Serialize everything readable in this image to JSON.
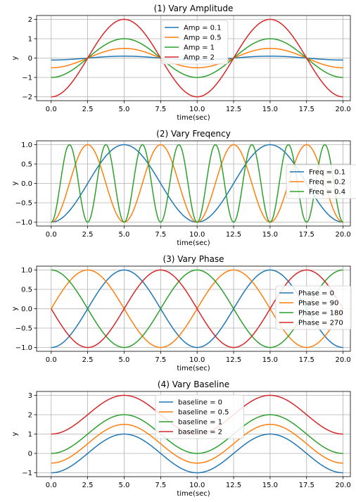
{
  "chart_data": [
    {
      "type": "line",
      "title": "(1) Vary Amplitude",
      "xlabel": "time(sec)",
      "ylabel": "y",
      "xlim": [
        -1,
        20.5
      ],
      "ylim": [
        -2.2,
        2.2
      ],
      "xticks": [
        0.0,
        2.5,
        5.0,
        7.5,
        10.0,
        12.5,
        15.0,
        17.5,
        20.0
      ],
      "xtick_labels": [
        "0.0",
        "2.5",
        "5.0",
        "7.5",
        "10.0",
        "12.5",
        "15.0",
        "17.5",
        "20.0"
      ],
      "yticks": [
        -2,
        -1,
        0,
        1,
        2
      ],
      "ytick_labels": [
        "−2",
        "−1",
        "0",
        "1",
        "2"
      ],
      "grid": true,
      "legend_position": "top-center",
      "function": "y = baseline - amplitude * cos(2π · frequency · t + phase)",
      "t_range": [
        0,
        20
      ],
      "series": [
        {
          "name": "Amp = 0.1",
          "color": "#1f77b4",
          "amplitude": 0.1,
          "frequency": 0.1,
          "phase_deg": 0,
          "baseline": 0
        },
        {
          "name": "Amp = 0.5",
          "color": "#ff7f0e",
          "amplitude": 0.5,
          "frequency": 0.1,
          "phase_deg": 0,
          "baseline": 0
        },
        {
          "name": "Amp = 1",
          "color": "#2ca02c",
          "amplitude": 1,
          "frequency": 0.1,
          "phase_deg": 0,
          "baseline": 0
        },
        {
          "name": "Amp = 2",
          "color": "#d62728",
          "amplitude": 2,
          "frequency": 0.1,
          "phase_deg": 0,
          "baseline": 0
        }
      ]
    },
    {
      "type": "line",
      "title": "(2) Vary Freqency",
      "xlabel": "time(sec)",
      "ylabel": "y",
      "xlim": [
        -1,
        20.5
      ],
      "ylim": [
        -1.1,
        1.1
      ],
      "xticks": [
        0.0,
        2.5,
        5.0,
        7.5,
        10.0,
        12.5,
        15.0,
        17.5,
        20.0
      ],
      "xtick_labels": [
        "0.0",
        "2.5",
        "5.0",
        "7.5",
        "10.0",
        "12.5",
        "15.0",
        "17.5",
        "20.0"
      ],
      "yticks": [
        -1.0,
        -0.5,
        0.0,
        0.5,
        1.0
      ],
      "ytick_labels": [
        "−1.0",
        "−0.5",
        "0.0",
        "0.5",
        "1.0"
      ],
      "grid": true,
      "legend_position": "center-right",
      "function": "y = baseline - amplitude * cos(2π · frequency · t + phase)",
      "t_range": [
        0,
        20
      ],
      "series": [
        {
          "name": "Freq = 0.1",
          "color": "#1f77b4",
          "amplitude": 1,
          "frequency": 0.1,
          "phase_deg": 0,
          "baseline": 0
        },
        {
          "name": "Freq = 0.2",
          "color": "#ff7f0e",
          "amplitude": 1,
          "frequency": 0.2,
          "phase_deg": 0,
          "baseline": 0
        },
        {
          "name": "Freq = 0.4",
          "color": "#2ca02c",
          "amplitude": 1,
          "frequency": 0.4,
          "phase_deg": 0,
          "baseline": 0
        }
      ]
    },
    {
      "type": "line",
      "title": "(3) Vary Phase",
      "xlabel": "time(sec)",
      "ylabel": "y",
      "xlim": [
        -1,
        20.5
      ],
      "ylim": [
        -1.1,
        1.1
      ],
      "xticks": [
        0.0,
        2.5,
        5.0,
        7.5,
        10.0,
        12.5,
        15.0,
        17.5,
        20.0
      ],
      "xtick_labels": [
        "0.0",
        "2.5",
        "5.0",
        "7.5",
        "10.0",
        "12.5",
        "15.0",
        "17.5",
        "20.0"
      ],
      "yticks": [
        -1.0,
        -0.5,
        0.0,
        0.5,
        1.0
      ],
      "ytick_labels": [
        "−1.0",
        "−0.5",
        "0.0",
        "0.5",
        "1.0"
      ],
      "grid": true,
      "legend_position": "center-right",
      "function": "y = baseline - amplitude * cos(2π · frequency · t + phase)",
      "t_range": [
        0,
        20
      ],
      "series": [
        {
          "name": "Phase = 0",
          "color": "#1f77b4",
          "amplitude": 1,
          "frequency": 0.1,
          "phase_deg": 0,
          "baseline": 0
        },
        {
          "name": "Phase = 90",
          "color": "#ff7f0e",
          "amplitude": 1,
          "frequency": 0.1,
          "phase_deg": 90,
          "baseline": 0
        },
        {
          "name": "Phase = 180",
          "color": "#2ca02c",
          "amplitude": 1,
          "frequency": 0.1,
          "phase_deg": 180,
          "baseline": 0
        },
        {
          "name": "Phase = 270",
          "color": "#d62728",
          "amplitude": 1,
          "frequency": 0.1,
          "phase_deg": 270,
          "baseline": 0
        }
      ]
    },
    {
      "type": "line",
      "title": "(4) Vary Baseline",
      "xlabel": "time(sec)",
      "ylabel": "y",
      "xlim": [
        -1,
        20.5
      ],
      "ylim": [
        -1.2,
        3.2
      ],
      "xticks": [
        0.0,
        2.5,
        5.0,
        7.5,
        10.0,
        12.5,
        15.0,
        17.5,
        20.0
      ],
      "xtick_labels": [
        "0.0",
        "2.5",
        "5.0",
        "7.5",
        "10.0",
        "12.5",
        "15.0",
        "17.5",
        "20.0"
      ],
      "yticks": [
        -1,
        0,
        1,
        2,
        3
      ],
      "ytick_labels": [
        "−1",
        "0",
        "1",
        "2",
        "3"
      ],
      "grid": true,
      "legend_position": "top-center",
      "function": "y = baseline - amplitude * cos(2π · frequency · t + phase)",
      "t_range": [
        0,
        20
      ],
      "series": [
        {
          "name": "baseline = 0",
          "color": "#1f77b4",
          "amplitude": 1,
          "frequency": 0.1,
          "phase_deg": 0,
          "baseline": 0
        },
        {
          "name": "baseline = 0.5",
          "color": "#ff7f0e",
          "amplitude": 1,
          "frequency": 0.1,
          "phase_deg": 0,
          "baseline": 0.5
        },
        {
          "name": "baseline = 1",
          "color": "#2ca02c",
          "amplitude": 1,
          "frequency": 0.1,
          "phase_deg": 0,
          "baseline": 1
        },
        {
          "name": "baseline = 2",
          "color": "#d62728",
          "amplitude": 1,
          "frequency": 0.1,
          "phase_deg": 0,
          "baseline": 2
        }
      ]
    }
  ]
}
